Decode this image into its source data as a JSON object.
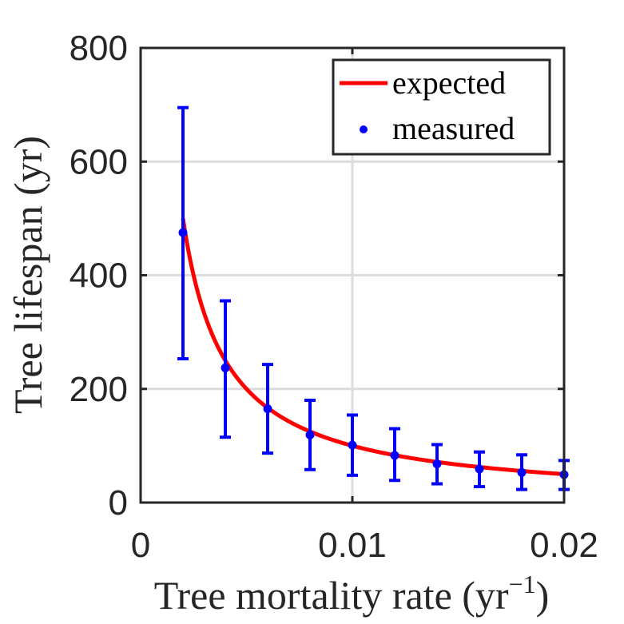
{
  "chart_data": {
    "type": "scatter",
    "xlabel": "Tree mortality rate (yr",
    "xlabel_sup": "−1",
    "xlabel_close": ")",
    "ylabel": "Tree lifespan (yr)",
    "xlim": [
      0,
      0.02
    ],
    "ylim": [
      0,
      800
    ],
    "xticks": [
      0,
      0.01,
      0.02
    ],
    "xtick_labels": [
      "0",
      "0.01",
      "0.02"
    ],
    "yticks": [
      0,
      200,
      400,
      600,
      800
    ],
    "ytick_labels": [
      "0",
      "200",
      "400",
      "600",
      "800"
    ],
    "grid": true,
    "legend_position": "top-right",
    "series": [
      {
        "name": "expected",
        "kind": "line",
        "color": "#ff0000",
        "formula": "1/x",
        "x_range": [
          0.002,
          0.02
        ]
      },
      {
        "name": "measured",
        "kind": "errorbar",
        "color": "#0000ff",
        "x": [
          0.002,
          0.004,
          0.006,
          0.008,
          0.01,
          0.012,
          0.014,
          0.016,
          0.018,
          0.02
        ],
        "y": [
          475,
          237,
          165,
          119,
          101,
          83,
          68,
          59,
          53,
          49
        ],
        "err_low": [
          253,
          115,
          87,
          58,
          48,
          39,
          33,
          28,
          23,
          23
        ],
        "err_high": [
          695,
          355,
          243,
          180,
          154,
          130,
          102,
          89,
          84,
          74
        ]
      }
    ]
  }
}
